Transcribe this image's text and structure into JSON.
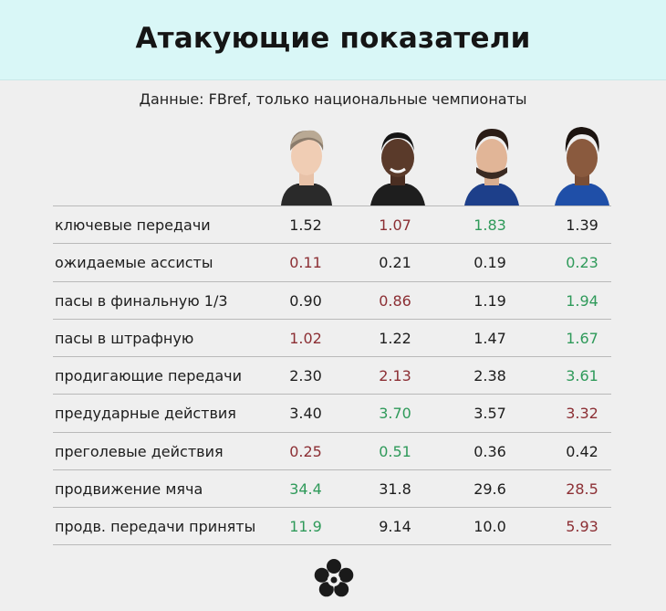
{
  "title": "Атакующие показатели",
  "subtitle": "Данные: FBref, только национальные чемпионаты",
  "colors": {
    "header_bg": "#d9f7f7",
    "good": "#2f9a5a",
    "bad": "#8c2f34",
    "neutral": "#1d1d1d"
  },
  "rows": [
    {
      "label": "ключевые передачи",
      "values": [
        "1.52",
        "1.07",
        "1.83",
        "1.39"
      ],
      "status": [
        "neutral",
        "bad",
        "good",
        "neutral"
      ]
    },
    {
      "label": "ожидаемые ассисты",
      "values": [
        "0.11",
        "0.21",
        "0.19",
        "0.23"
      ],
      "status": [
        "bad",
        "neutral",
        "neutral",
        "good"
      ]
    },
    {
      "label": "пасы в финальную 1/3",
      "values": [
        "0.90",
        "0.86",
        "1.19",
        "1.94"
      ],
      "status": [
        "neutral",
        "bad",
        "neutral",
        "good"
      ]
    },
    {
      "label": "пасы в штрафную",
      "values": [
        "1.02",
        "1.22",
        "1.47",
        "1.67"
      ],
      "status": [
        "bad",
        "neutral",
        "neutral",
        "good"
      ]
    },
    {
      "label": "продигающие передачи",
      "values": [
        "2.30",
        "2.13",
        "2.38",
        "3.61"
      ],
      "status": [
        "neutral",
        "bad",
        "neutral",
        "good"
      ]
    },
    {
      "label": "предударные действия",
      "values": [
        "3.40",
        "3.70",
        "3.57",
        "3.32"
      ],
      "status": [
        "neutral",
        "good",
        "neutral",
        "bad"
      ]
    },
    {
      "label": "преголевые действия",
      "values": [
        "0.25",
        "0.51",
        "0.36",
        "0.42"
      ],
      "status": [
        "bad",
        "good",
        "neutral",
        "neutral"
      ]
    },
    {
      "label": "продвижение мяча",
      "values": [
        "34.4",
        "31.8",
        "29.6",
        "28.5"
      ],
      "status": [
        "good",
        "neutral",
        "neutral",
        "bad"
      ]
    },
    {
      "label": "продв. передачи приняты",
      "values": [
        "11.9",
        "9.14",
        "10.0",
        "5.93"
      ],
      "status": [
        "good",
        "neutral",
        "neutral",
        "bad"
      ]
    }
  ],
  "players": [
    {
      "photo_icon": "player-photo-1"
    },
    {
      "photo_icon": "player-photo-2"
    },
    {
      "photo_icon": "player-photo-3"
    },
    {
      "photo_icon": "player-photo-4"
    }
  ],
  "footer": {
    "logo_icon": "flower-logo-icon"
  }
}
